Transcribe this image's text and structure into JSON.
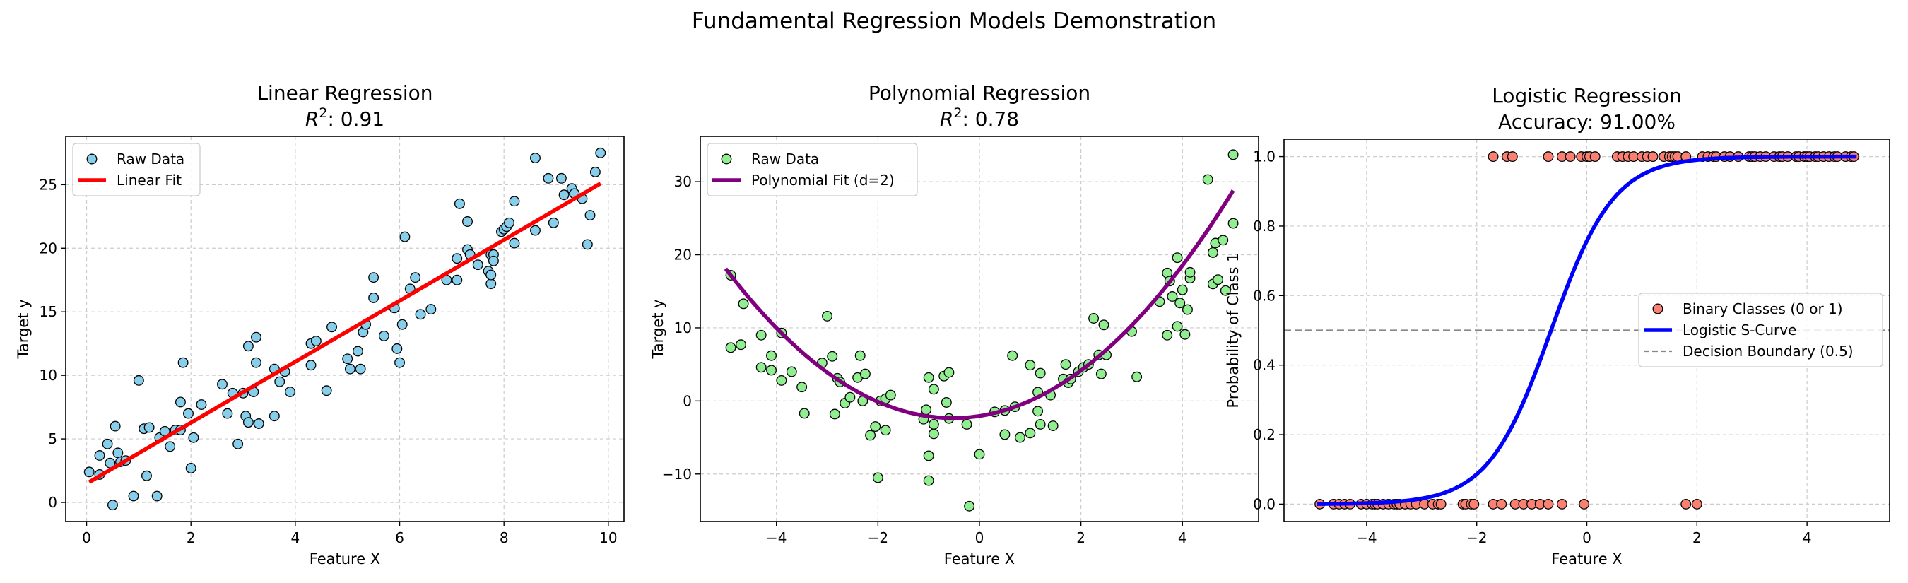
{
  "figure": {
    "suptitle": "Fundamental Regression Models Demonstration"
  },
  "chart_data": [
    {
      "type": "scatter",
      "title": "Linear Regression",
      "subtitle_prefix": "R",
      "subtitle_sup": "2",
      "subtitle_value": ": 0.91",
      "xlabel": "Feature X",
      "ylabel": "Target y",
      "xlim": [
        -0.4,
        10.3
      ],
      "ylim": [
        -1.5,
        28.8
      ],
      "xticks": [
        0,
        2,
        4,
        6,
        8,
        10
      ],
      "yticks": [
        0,
        5,
        10,
        15,
        20,
        25
      ],
      "grid": true,
      "legend_position": "upper-left",
      "legend": [
        "Raw Data",
        "Linear Fit"
      ],
      "colors": {
        "points": "#87ceeb",
        "line": "#ff0000"
      },
      "scatter": [
        [
          0.05,
          2.4
        ],
        [
          0.25,
          2.2
        ],
        [
          0.25,
          3.7
        ],
        [
          0.4,
          4.6
        ],
        [
          0.45,
          3.1
        ],
        [
          0.5,
          -0.2
        ],
        [
          0.55,
          6.0
        ],
        [
          0.6,
          3.9
        ],
        [
          0.65,
          3.2
        ],
        [
          0.75,
          3.3
        ],
        [
          0.9,
          0.5
        ],
        [
          1.0,
          9.6
        ],
        [
          1.1,
          5.8
        ],
        [
          1.15,
          2.1
        ],
        [
          1.2,
          5.9
        ],
        [
          1.35,
          0.5
        ],
        [
          1.4,
          5.1
        ],
        [
          1.5,
          5.6
        ],
        [
          1.6,
          4.4
        ],
        [
          1.7,
          5.7
        ],
        [
          1.8,
          5.7
        ],
        [
          1.8,
          7.9
        ],
        [
          1.85,
          11.0
        ],
        [
          1.95,
          7.0
        ],
        [
          2.0,
          2.7
        ],
        [
          2.05,
          5.1
        ],
        [
          2.2,
          7.7
        ],
        [
          2.6,
          9.3
        ],
        [
          2.7,
          7.0
        ],
        [
          2.8,
          8.6
        ],
        [
          2.9,
          4.6
        ],
        [
          3.0,
          8.6
        ],
        [
          3.05,
          6.8
        ],
        [
          3.1,
          6.3
        ],
        [
          3.1,
          12.3
        ],
        [
          3.2,
          8.7
        ],
        [
          3.25,
          11.0
        ],
        [
          3.25,
          13.0
        ],
        [
          3.3,
          6.2
        ],
        [
          3.6,
          6.8
        ],
        [
          3.6,
          10.5
        ],
        [
          3.7,
          9.5
        ],
        [
          3.8,
          10.3
        ],
        [
          3.9,
          8.7
        ],
        [
          4.3,
          10.8
        ],
        [
          4.3,
          12.5
        ],
        [
          4.4,
          12.7
        ],
        [
          4.6,
          8.8
        ],
        [
          4.7,
          13.8
        ],
        [
          5.0,
          11.3
        ],
        [
          5.05,
          10.5
        ],
        [
          5.2,
          11.9
        ],
        [
          5.25,
          10.5
        ],
        [
          5.3,
          13.4
        ],
        [
          5.35,
          14.0
        ],
        [
          5.5,
          16.1
        ],
        [
          5.5,
          17.7
        ],
        [
          5.7,
          13.1
        ],
        [
          5.9,
          15.3
        ],
        [
          5.95,
          12.1
        ],
        [
          6.0,
          11.0
        ],
        [
          6.05,
          14.0
        ],
        [
          6.1,
          20.9
        ],
        [
          6.2,
          16.8
        ],
        [
          6.3,
          17.7
        ],
        [
          6.4,
          14.8
        ],
        [
          6.6,
          15.2
        ],
        [
          6.9,
          17.5
        ],
        [
          7.1,
          19.2
        ],
        [
          7.1,
          17.5
        ],
        [
          7.15,
          23.5
        ],
        [
          7.3,
          22.1
        ],
        [
          7.3,
          19.9
        ],
        [
          7.35,
          19.5
        ],
        [
          7.5,
          18.7
        ],
        [
          7.7,
          18.2
        ],
        [
          7.75,
          17.2
        ],
        [
          7.75,
          17.9
        ],
        [
          7.75,
          19.5
        ],
        [
          7.8,
          19.5
        ],
        [
          7.8,
          19.0
        ],
        [
          7.95,
          21.3
        ],
        [
          8.0,
          21.5
        ],
        [
          8.05,
          21.7
        ],
        [
          8.1,
          22.0
        ],
        [
          8.2,
          23.7
        ],
        [
          8.2,
          20.4
        ],
        [
          8.6,
          27.1
        ],
        [
          8.6,
          21.4
        ],
        [
          8.85,
          25.5
        ],
        [
          8.95,
          22.0
        ],
        [
          9.1,
          25.5
        ],
        [
          9.15,
          24.2
        ],
        [
          9.3,
          24.7
        ],
        [
          9.35,
          24.3
        ],
        [
          9.5,
          23.9
        ],
        [
          9.6,
          20.3
        ],
        [
          9.65,
          22.6
        ],
        [
          9.75,
          26.0
        ],
        [
          9.85,
          27.5
        ]
      ],
      "line": [
        [
          0.05,
          1.6
        ],
        [
          9.85,
          25.1
        ]
      ]
    },
    {
      "type": "scatter",
      "title": "Polynomial Regression",
      "subtitle_prefix": "R",
      "subtitle_sup": "2",
      "subtitle_value": ": 0.78",
      "xlabel": "Feature X",
      "ylabel": "Target y",
      "xlim": [
        -5.5,
        5.5
      ],
      "ylim": [
        -16.5,
        36.2
      ],
      "xticks": [
        -4,
        -2,
        0,
        2,
        4
      ],
      "yticks": [
        -10,
        0,
        10,
        20,
        30
      ],
      "grid": true,
      "legend_position": "upper-left",
      "legend": [
        "Raw Data",
        "Polynomial Fit (d=2)"
      ],
      "colors": {
        "points": "#90ee90",
        "line": "#800080"
      },
      "scatter": [
        [
          -4.9,
          17.2
        ],
        [
          -4.9,
          7.3
        ],
        [
          -4.7,
          7.7
        ],
        [
          -4.65,
          13.3
        ],
        [
          -4.3,
          9.0
        ],
        [
          -4.3,
          4.6
        ],
        [
          -4.1,
          6.2
        ],
        [
          -4.1,
          4.2
        ],
        [
          -3.9,
          9.3
        ],
        [
          -3.9,
          2.8
        ],
        [
          -3.7,
          4.0
        ],
        [
          -3.5,
          1.9
        ],
        [
          -3.45,
          -1.7
        ],
        [
          -3.1,
          5.2
        ],
        [
          -3.0,
          11.6
        ],
        [
          -2.9,
          6.1
        ],
        [
          -2.85,
          -1.8
        ],
        [
          -2.8,
          3.1
        ],
        [
          -2.75,
          2.6
        ],
        [
          -2.65,
          -0.3
        ],
        [
          -2.55,
          0.5
        ],
        [
          -2.4,
          3.2
        ],
        [
          -2.35,
          6.2
        ],
        [
          -2.3,
          0.0
        ],
        [
          -2.25,
          3.7
        ],
        [
          -2.15,
          -4.7
        ],
        [
          -2.05,
          -3.5
        ],
        [
          -2.0,
          -10.5
        ],
        [
          -1.95,
          0.0
        ],
        [
          -1.85,
          0.3
        ],
        [
          -1.85,
          -4.0
        ],
        [
          -1.75,
          0.8
        ],
        [
          -1.1,
          -2.5
        ],
        [
          -1.05,
          -1.2
        ],
        [
          -1.0,
          3.2
        ],
        [
          -1.0,
          -7.5
        ],
        [
          -1.0,
          -10.9
        ],
        [
          -0.9,
          1.6
        ],
        [
          -0.9,
          -3.2
        ],
        [
          -0.9,
          -4.5
        ],
        [
          -0.7,
          3.4
        ],
        [
          -0.65,
          -0.2
        ],
        [
          -0.6,
          3.9
        ],
        [
          -0.6,
          -2.4
        ],
        [
          -0.25,
          -3.2
        ],
        [
          -0.2,
          -14.4
        ],
        [
          0.0,
          -7.3
        ],
        [
          0.3,
          -1.5
        ],
        [
          0.5,
          -1.3
        ],
        [
          0.5,
          -4.6
        ],
        [
          0.65,
          6.2
        ],
        [
          0.7,
          -0.8
        ],
        [
          0.8,
          -5.0
        ],
        [
          1.0,
          4.9
        ],
        [
          1.0,
          -4.4
        ],
        [
          1.15,
          -1.4
        ],
        [
          1.15,
          1.2
        ],
        [
          1.2,
          3.8
        ],
        [
          1.2,
          -3.2
        ],
        [
          1.4,
          0.8
        ],
        [
          1.45,
          -3.4
        ],
        [
          1.65,
          3.0
        ],
        [
          1.7,
          5.0
        ],
        [
          1.75,
          2.5
        ],
        [
          1.8,
          3.0
        ],
        [
          1.95,
          4.0
        ],
        [
          2.05,
          4.6
        ],
        [
          2.15,
          5.0
        ],
        [
          2.25,
          11.3
        ],
        [
          2.35,
          6.3
        ],
        [
          2.4,
          3.7
        ],
        [
          2.45,
          10.4
        ],
        [
          2.5,
          6.3
        ],
        [
          3.0,
          9.5
        ],
        [
          3.1,
          3.3
        ],
        [
          3.55,
          13.6
        ],
        [
          3.7,
          17.5
        ],
        [
          3.7,
          9.0
        ],
        [
          3.75,
          16.4
        ],
        [
          3.8,
          14.3
        ],
        [
          3.9,
          19.6
        ],
        [
          3.9,
          10.2
        ],
        [
          3.95,
          13.4
        ],
        [
          4.0,
          15.2
        ],
        [
          4.05,
          9.1
        ],
        [
          4.1,
          12.5
        ],
        [
          4.15,
          16.8
        ],
        [
          4.15,
          17.6
        ],
        [
          4.5,
          30.3
        ],
        [
          4.6,
          16.0
        ],
        [
          4.6,
          20.3
        ],
        [
          4.65,
          21.6
        ],
        [
          4.7,
          16.6
        ],
        [
          4.8,
          22.0
        ],
        [
          4.85,
          15.1
        ],
        [
          5.0,
          24.3
        ],
        [
          5.0,
          33.7
        ]
      ],
      "curve_coefficients": {
        "a": 1.02,
        "b": 1.07,
        "c": -2.06
      },
      "curve_domain": [
        -5,
        5
      ]
    },
    {
      "type": "scatter",
      "title": "Logistic Regression",
      "subtitle_value": "Accuracy: 91.00%",
      "xlabel": "Feature X",
      "ylabel": "Probability of Class 1",
      "xlim": [
        -5.5,
        5.5
      ],
      "ylim": [
        -0.05,
        1.05
      ],
      "xticks": [
        -4,
        -2,
        0,
        2,
        4
      ],
      "yticks": [
        0.0,
        0.2,
        0.4,
        0.6,
        0.8,
        1.0
      ],
      "ytick_labels": [
        "0.0",
        "0.2",
        "0.4",
        "0.6",
        "0.8",
        "1.0"
      ],
      "grid": true,
      "legend_position": "center-right",
      "legend": [
        "Binary Classes (0 or 1)",
        "Logistic S-Curve",
        "Decision Boundary (0.5)"
      ],
      "colors": {
        "points": "#fa8072",
        "line": "#0000ff",
        "boundary": "#888888"
      },
      "decision_boundary": 0.5,
      "class0_x": [
        -4.85,
        -4.6,
        -4.5,
        -4.4,
        -4.3,
        -4.1,
        -4.0,
        -3.9,
        -3.85,
        -3.8,
        -3.7,
        -3.6,
        -3.5,
        -3.45,
        -3.4,
        -3.3,
        -3.2,
        -3.1,
        -2.95,
        -2.8,
        -2.7,
        -2.65,
        -2.25,
        -2.2,
        -2.1,
        -2.05,
        -1.7,
        -1.55,
        -1.3,
        -1.15,
        -1.0,
        -0.85,
        -0.7,
        -0.45,
        -0.05,
        1.8,
        2.0
      ],
      "class1_x": [
        -1.7,
        -1.45,
        -1.35,
        -0.7,
        -0.45,
        -0.3,
        -0.1,
        0.0,
        0.05,
        0.15,
        0.55,
        0.65,
        0.75,
        0.85,
        1.0,
        1.1,
        1.2,
        1.4,
        1.5,
        1.55,
        1.6,
        1.65,
        1.8,
        2.1,
        2.2,
        2.3,
        2.35,
        2.5,
        2.6,
        2.75,
        2.95,
        3.0,
        3.05,
        3.15,
        3.25,
        3.4,
        3.5,
        3.55,
        3.65,
        3.8,
        3.85,
        3.95,
        4.0,
        4.05,
        4.15,
        4.2,
        4.3,
        4.4,
        4.5,
        4.55,
        4.7,
        4.8,
        4.85
      ],
      "sigmoid": {
        "slope": 1.75,
        "center": -0.65
      },
      "curve_domain": [
        -4.9,
        4.9
      ]
    }
  ]
}
